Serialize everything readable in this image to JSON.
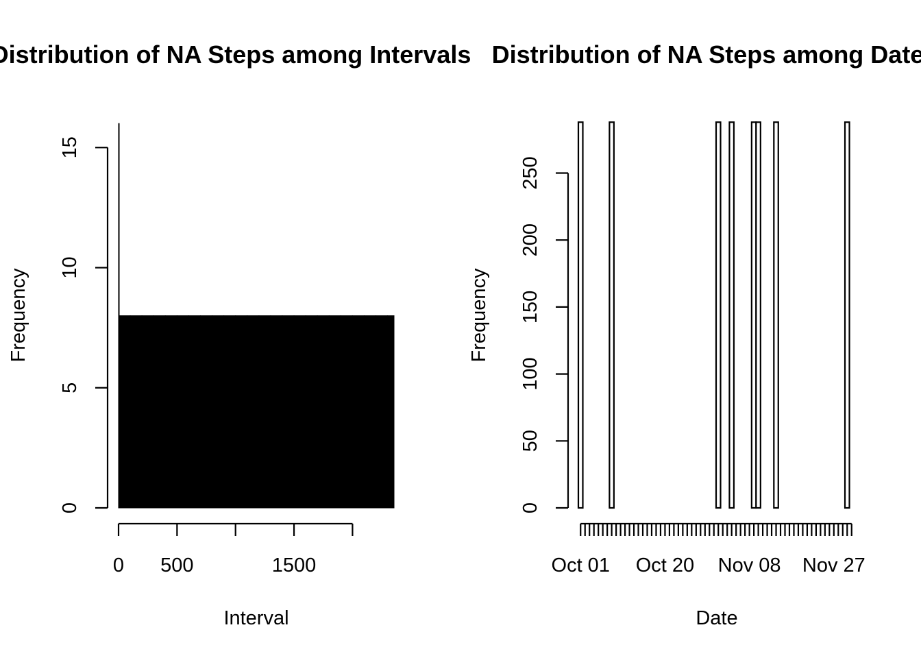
{
  "chart_data": [
    {
      "type": "bar",
      "title": "Distribution of NA Steps among Intervals",
      "xlabel": "Interval",
      "ylabel": "Frequency",
      "xlim": [
        0,
        2355
      ],
      "ylim": [
        0,
        16
      ],
      "x_ticks": [
        0,
        500,
        1000,
        1500,
        2000
      ],
      "x_tick_labels": [
        "0",
        "500",
        "",
        "1500",
        ""
      ],
      "y_ticks": [
        0,
        5,
        10,
        15
      ],
      "bar_fill": "#000000",
      "bars": [
        {
          "x0": 0,
          "x1": 5,
          "count": 16
        },
        {
          "x0": 5,
          "x1": 100,
          "count": 8
        },
        {
          "x0": 100,
          "x1": 200,
          "count": 8
        },
        {
          "x0": 200,
          "x1": 300,
          "count": 8
        },
        {
          "x0": 300,
          "x1": 400,
          "count": 8
        },
        {
          "x0": 400,
          "x1": 500,
          "count": 8
        },
        {
          "x0": 500,
          "x1": 600,
          "count": 8
        },
        {
          "x0": 600,
          "x1": 700,
          "count": 8
        },
        {
          "x0": 700,
          "x1": 800,
          "count": 8
        },
        {
          "x0": 800,
          "x1": 900,
          "count": 8
        },
        {
          "x0": 900,
          "x1": 1000,
          "count": 8
        },
        {
          "x0": 1000,
          "x1": 1100,
          "count": 8
        },
        {
          "x0": 1100,
          "x1": 1200,
          "count": 8
        },
        {
          "x0": 1200,
          "x1": 1300,
          "count": 8
        },
        {
          "x0": 1300,
          "x1": 1400,
          "count": 8
        },
        {
          "x0": 1400,
          "x1": 1500,
          "count": 8
        },
        {
          "x0": 1500,
          "x1": 1600,
          "count": 8
        },
        {
          "x0": 1600,
          "x1": 1700,
          "count": 8
        },
        {
          "x0": 1700,
          "x1": 1800,
          "count": 8
        },
        {
          "x0": 1800,
          "x1": 1900,
          "count": 8
        },
        {
          "x0": 1900,
          "x1": 2000,
          "count": 8
        },
        {
          "x0": 2000,
          "x1": 2100,
          "count": 8
        },
        {
          "x0": 2100,
          "x1": 2200,
          "count": 8
        },
        {
          "x0": 2200,
          "x1": 2300,
          "count": 8
        },
        {
          "x0": 2300,
          "x1": 2355,
          "count": 8
        }
      ]
    },
    {
      "type": "bar",
      "title": "Distribution of NA Steps among Dates",
      "xlabel": "Date",
      "ylabel": "Frequency",
      "categories": [
        "2012-10-01",
        "2012-10-02",
        "2012-10-03",
        "2012-10-04",
        "2012-10-05",
        "2012-10-06",
        "2012-10-07",
        "2012-10-08",
        "2012-10-09",
        "2012-10-10",
        "2012-10-11",
        "2012-10-12",
        "2012-10-13",
        "2012-10-14",
        "2012-10-15",
        "2012-10-16",
        "2012-10-17",
        "2012-10-18",
        "2012-10-19",
        "2012-10-20",
        "2012-10-21",
        "2012-10-22",
        "2012-10-23",
        "2012-10-24",
        "2012-10-25",
        "2012-10-26",
        "2012-10-27",
        "2012-10-28",
        "2012-10-29",
        "2012-10-30",
        "2012-10-31",
        "2012-11-01",
        "2012-11-02",
        "2012-11-03",
        "2012-11-04",
        "2012-11-05",
        "2012-11-06",
        "2012-11-07",
        "2012-11-08",
        "2012-11-09",
        "2012-11-10",
        "2012-11-11",
        "2012-11-12",
        "2012-11-13",
        "2012-11-14",
        "2012-11-15",
        "2012-11-16",
        "2012-11-17",
        "2012-11-18",
        "2012-11-19",
        "2012-11-20",
        "2012-11-21",
        "2012-11-22",
        "2012-11-23",
        "2012-11-24",
        "2012-11-25",
        "2012-11-26",
        "2012-11-27",
        "2012-11-28",
        "2012-11-29",
        "2012-11-30",
        "2012-12-01"
      ],
      "values": [
        288,
        0,
        0,
        0,
        0,
        0,
        0,
        288,
        0,
        0,
        0,
        0,
        0,
        0,
        0,
        0,
        0,
        0,
        0,
        0,
        0,
        0,
        0,
        0,
        0,
        0,
        0,
        0,
        0,
        0,
        0,
        288,
        0,
        0,
        288,
        0,
        0,
        0,
        0,
        288,
        288,
        0,
        0,
        0,
        288,
        0,
        0,
        0,
        0,
        0,
        0,
        0,
        0,
        0,
        0,
        0,
        0,
        0,
        0,
        0,
        288,
        0
      ],
      "x_tick_labels": [
        "Oct 01",
        "Oct 20",
        "Nov 08",
        "Nov 27"
      ],
      "x_tick_label_dates": [
        "2012-10-01",
        "2012-10-20",
        "2012-11-08",
        "2012-11-27"
      ],
      "y_ticks": [
        0,
        50,
        100,
        150,
        200,
        250
      ],
      "ylim": [
        0,
        288
      ],
      "bar_fill": "#ffffff",
      "bar_stroke": "#000000"
    }
  ]
}
